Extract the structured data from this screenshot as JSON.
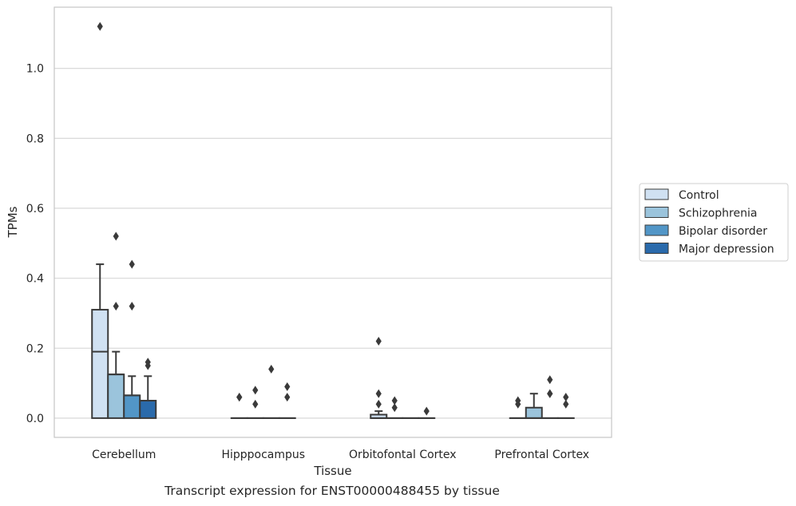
{
  "caption": "Transcript expression for ENST00000488455 by tissue",
  "colors": {
    "Control": "#d0e1f2",
    "Schizophrenia": "#9bc4dc",
    "Bipolar disorder": "#5296c7",
    "Major depression": "#2a6aab",
    "edge": "#3a3a3a",
    "grid": "#d4d4d4",
    "frame": "#c8c8c8"
  },
  "chart_data": {
    "type": "box",
    "xlabel": "Tissue",
    "ylabel": "TPMs",
    "ylim": [
      -0.055,
      1.175
    ],
    "yticks": [
      0.0,
      0.2,
      0.4,
      0.6,
      0.8,
      1.0
    ],
    "ytick_labels": [
      "0.0",
      "0.2",
      "0.4",
      "0.6",
      "0.8",
      "1.0"
    ],
    "grid": "horizontal",
    "legend_position": "right",
    "categories": [
      "Cerebellum",
      "Hipppocampus",
      "Orbitofontal Cortex",
      "Prefrontal Cortex"
    ],
    "series": [
      {
        "name": "Control",
        "boxes": [
          {
            "whislo": 0.0,
            "q1": 0.0,
            "med": 0.19,
            "q3": 0.31,
            "whishi": 0.44,
            "fliers": [
              1.12
            ]
          },
          {
            "whislo": 0.0,
            "q1": 0.0,
            "med": 0.0,
            "q3": 0.0,
            "whishi": 0.0,
            "fliers": [
              0.06,
              0.06
            ]
          },
          {
            "whislo": 0.0,
            "q1": 0.0,
            "med": 0.0,
            "q3": 0.01,
            "whishi": 0.02,
            "fliers": [
              0.22,
              0.07,
              0.04
            ]
          },
          {
            "whislo": 0.0,
            "q1": 0.0,
            "med": 0.0,
            "q3": 0.0,
            "whishi": 0.0,
            "fliers": [
              0.05,
              0.04
            ]
          }
        ]
      },
      {
        "name": "Schizophrenia",
        "boxes": [
          {
            "whislo": 0.0,
            "q1": 0.0,
            "med": 0.125,
            "q3": 0.125,
            "whishi": 0.19,
            "fliers": [
              0.52,
              0.32
            ]
          },
          {
            "whislo": 0.0,
            "q1": 0.0,
            "med": 0.0,
            "q3": 0.0,
            "whishi": 0.0,
            "fliers": [
              0.08,
              0.04
            ]
          },
          {
            "whislo": 0.0,
            "q1": 0.0,
            "med": 0.0,
            "q3": 0.0,
            "whishi": 0.0,
            "fliers": [
              0.05,
              0.03
            ]
          },
          {
            "whislo": 0.0,
            "q1": 0.0,
            "med": 0.0,
            "q3": 0.03,
            "whishi": 0.07,
            "fliers": []
          }
        ]
      },
      {
        "name": "Bipolar disorder",
        "boxes": [
          {
            "whislo": 0.0,
            "q1": 0.0,
            "med": 0.065,
            "q3": 0.065,
            "whishi": 0.12,
            "fliers": [
              0.44,
              0.32
            ]
          },
          {
            "whislo": 0.0,
            "q1": 0.0,
            "med": 0.0,
            "q3": 0.0,
            "whishi": 0.0,
            "fliers": [
              0.14
            ]
          },
          {
            "whislo": 0.0,
            "q1": 0.0,
            "med": 0.0,
            "q3": 0.0,
            "whishi": 0.0,
            "fliers": []
          },
          {
            "whislo": 0.0,
            "q1": 0.0,
            "med": 0.0,
            "q3": 0.0,
            "whishi": 0.0,
            "fliers": [
              0.11,
              0.07,
              0.07
            ]
          }
        ]
      },
      {
        "name": "Major depression",
        "boxes": [
          {
            "whislo": 0.0,
            "q1": 0.0,
            "med": 0.05,
            "q3": 0.05,
            "whishi": 0.12,
            "fliers": [
              0.16,
              0.15
            ]
          },
          {
            "whislo": 0.0,
            "q1": 0.0,
            "med": 0.0,
            "q3": 0.0,
            "whishi": 0.0,
            "fliers": [
              0.09,
              0.06
            ]
          },
          {
            "whislo": 0.0,
            "q1": 0.0,
            "med": 0.0,
            "q3": 0.0,
            "whishi": 0.0,
            "fliers": [
              0.02
            ]
          },
          {
            "whislo": 0.0,
            "q1": 0.0,
            "med": 0.0,
            "q3": 0.0,
            "whishi": 0.0,
            "fliers": [
              0.06,
              0.04
            ]
          }
        ]
      }
    ]
  }
}
